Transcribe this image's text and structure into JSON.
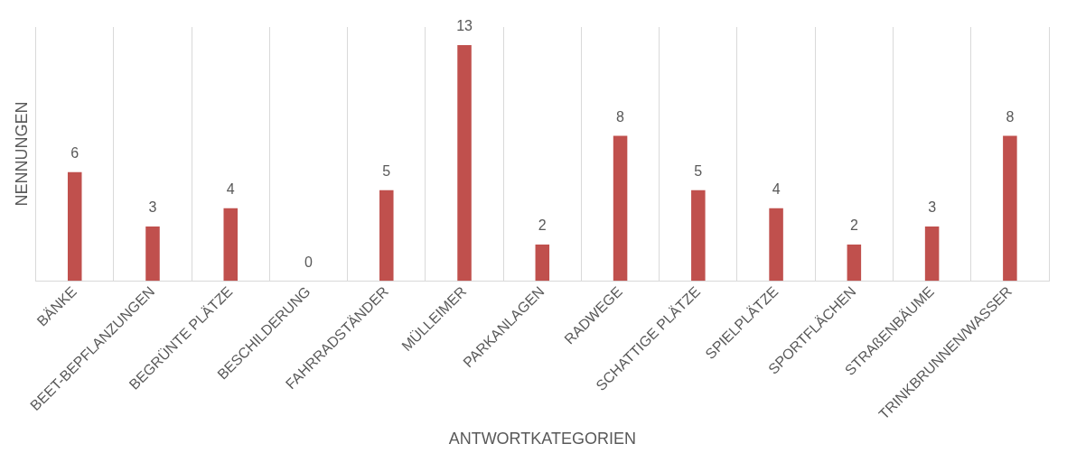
{
  "chart_data": {
    "type": "bar",
    "xlabel": "ANTWORTKATEGORIEN",
    "ylabel": "NENNUNGEN",
    "categories": [
      "BÄNKE",
      "BEET-BEPFLANZUNGEN",
      "BEGRÜNTE PLÄTZE",
      "BESCHILDERUNG",
      "FAHRRADSTÄNDER",
      "MÜLLEIMER",
      "PARKANLAGEN",
      "RADWEGE",
      "SCHATTIGE PLÄTZE",
      "SPIELPLÄTZE",
      "SPORTFLÄCHEN",
      "STRAßENBÄUME",
      "TRINKBRUNNEN/WASSER"
    ],
    "values": [
      6,
      3,
      4,
      0,
      5,
      13,
      2,
      8,
      5,
      4,
      2,
      3,
      8
    ],
    "color": "#c0504d",
    "data_labels": true,
    "grid": "x",
    "tick_labels": "x",
    "legend": false
  }
}
